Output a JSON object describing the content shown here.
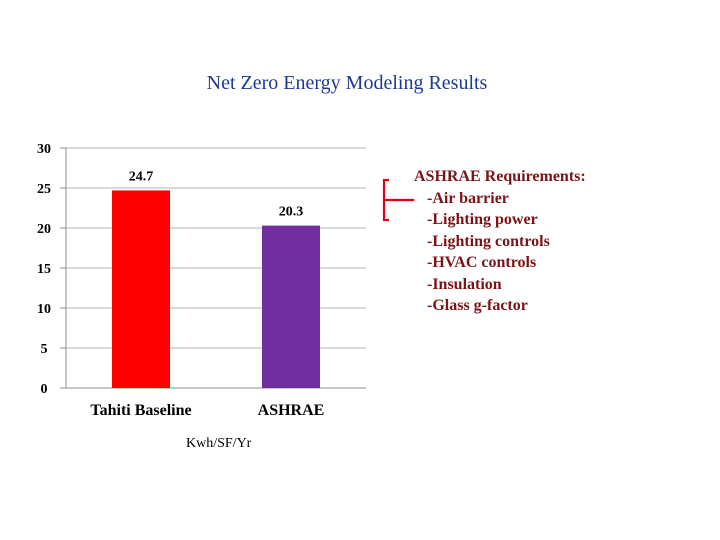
{
  "chart_data": {
    "type": "bar",
    "title": "Net Zero Energy Modeling Results",
    "categories": [
      "Tahiti Baseline",
      "ASHRAE"
    ],
    "values": [
      24.7,
      20.3
    ],
    "data_labels": [
      "24.7",
      "20.3"
    ],
    "colors": [
      "#ff0000",
      "#7030a0"
    ],
    "xlabel": "Kwh/SF/Yr",
    "ylabel": "",
    "ylim": [
      0,
      30
    ],
    "yticks": [
      0,
      5,
      10,
      15,
      20,
      25,
      30
    ],
    "grid": true,
    "gridline_color": "#b3b3b3",
    "legend": false
  },
  "annotation": {
    "heading": "ASHRAE Requirements:",
    "items": [
      "-Air barrier",
      "-Lighting power",
      "-Lighting controls",
      "-HVAC controls",
      "-Insulation",
      "-Glass g-factor"
    ],
    "color": "#7a1416",
    "bracket_color": "#e0001b"
  }
}
